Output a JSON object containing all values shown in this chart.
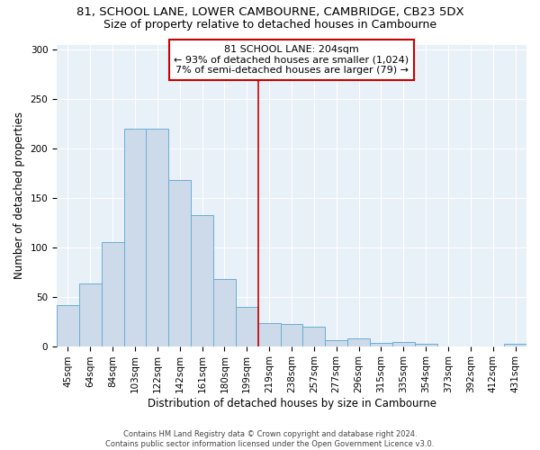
{
  "title_line1": "81, SCHOOL LANE, LOWER CAMBOURNE, CAMBRIDGE, CB23 5DX",
  "title_line2": "Size of property relative to detached houses in Cambourne",
  "xlabel": "Distribution of detached houses by size in Cambourne",
  "ylabel": "Number of detached properties",
  "bar_labels": [
    "45sqm",
    "64sqm",
    "84sqm",
    "103sqm",
    "122sqm",
    "142sqm",
    "161sqm",
    "180sqm",
    "199sqm",
    "219sqm",
    "238sqm",
    "257sqm",
    "277sqm",
    "296sqm",
    "315sqm",
    "335sqm",
    "354sqm",
    "373sqm",
    "392sqm",
    "412sqm",
    "431sqm"
  ],
  "bar_values": [
    42,
    63,
    105,
    220,
    220,
    168,
    133,
    68,
    40,
    23,
    22,
    20,
    6,
    8,
    3,
    4,
    2,
    0,
    0,
    0,
    2
  ],
  "bar_color": "#ccdaea",
  "bar_edge_color": "#6aaed6",
  "vline_x": 8.5,
  "vline_color": "#cc0000",
  "annotation_text": "81 SCHOOL LANE: 204sqm\n← 93% of detached houses are smaller (1,024)\n7% of semi-detached houses are larger (79) →",
  "annotation_box_color": "#cc0000",
  "ylim": [
    0,
    305
  ],
  "yticks": [
    0,
    50,
    100,
    150,
    200,
    250,
    300
  ],
  "bg_color": "#e8f0f8",
  "footer_line1": "Contains HM Land Registry data © Crown copyright and database right 2024.",
  "footer_line2": "Contains public sector information licensed under the Open Government Licence v3.0.",
  "title_fontsize": 9.5,
  "subtitle_fontsize": 9,
  "annotation_fontsize": 8,
  "axis_label_fontsize": 8.5,
  "tick_fontsize": 7.5,
  "footer_fontsize": 6
}
